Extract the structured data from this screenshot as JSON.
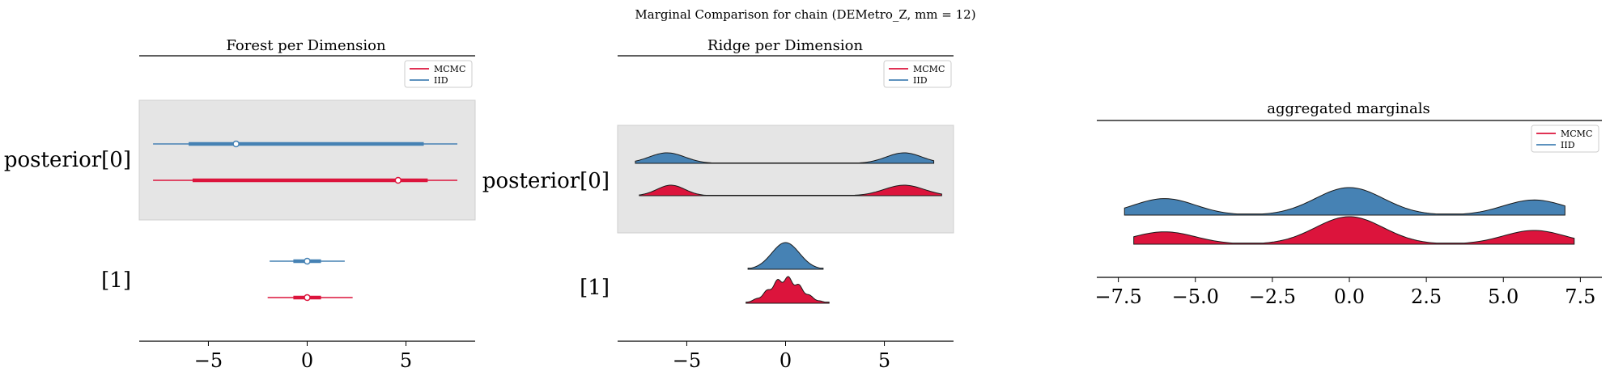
{
  "title": "Marginal Comparison for chain (DEMetro_Z, mm = 12)",
  "colors": {
    "mcmc": "#dc143c",
    "iid": "#4682b4",
    "band": "#e5e5e5"
  },
  "legend": {
    "placement": "upper right",
    "entries": [
      "MCMC",
      "IID"
    ]
  },
  "chart_data": [
    {
      "type": "forest",
      "title": "Forest per Dimension",
      "xlim": [
        -8.5,
        8.5
      ],
      "xticks": [
        -5,
        0,
        5
      ],
      "xtick_labels": [
        "−5",
        "0",
        "5"
      ],
      "rows": [
        {
          "label": "posterior[0]",
          "shaded": true,
          "series": [
            {
              "name": "IID",
              "hdi_thin": [
                -7.8,
                7.6
              ],
              "hdi_thick": [
                -6.0,
                5.9
              ],
              "point": -3.6
            },
            {
              "name": "MCMC",
              "hdi_thin": [
                -7.8,
                7.6
              ],
              "hdi_thick": [
                -5.8,
                6.1
              ],
              "point": 4.6
            }
          ]
        },
        {
          "label": "[1]",
          "shaded": false,
          "series": [
            {
              "name": "IID",
              "hdi_thin": [
                -1.9,
                1.9
              ],
              "hdi_thick": [
                -0.7,
                0.7
              ],
              "point": 0.0
            },
            {
              "name": "MCMC",
              "hdi_thin": [
                -2.0,
                2.3
              ],
              "hdi_thick": [
                -0.7,
                0.7
              ],
              "point": 0.0
            }
          ]
        }
      ]
    },
    {
      "type": "ridge",
      "title": "Ridge per Dimension",
      "xlim": [
        -8.5,
        8.5
      ],
      "xticks": [
        -5,
        0,
        5
      ],
      "xtick_labels": [
        "−5",
        "0",
        "5"
      ],
      "rows": [
        {
          "label": "posterior[0]",
          "shaded": true,
          "series": [
            {
              "name": "IID",
              "range": [
                -7.6,
                7.5
              ],
              "modes": [
                [
                  -6.0,
                  0.9,
                  1.1
                ],
                [
                  6.0,
                  0.9,
                  1.1
                ]
              ]
            },
            {
              "name": "MCMC",
              "range": [
                -7.4,
                7.9
              ],
              "modes": [
                [
                  -5.8,
                  0.7,
                  1.0
                ],
                [
                  6.0,
                  1.0,
                  1.0
                ]
              ]
            }
          ]
        },
        {
          "label": "[1]",
          "shaded": false,
          "series": [
            {
              "name": "IID",
              "range": [
                -1.9,
                1.9
              ],
              "modes": [
                [
                  0.0,
                  0.7,
                  1.0
                ]
              ]
            },
            {
              "name": "MCMC",
              "range": [
                -2.0,
                2.2
              ],
              "modes": [
                [
                  0.0,
                  0.8,
                  1.0
                ]
              ]
            }
          ]
        }
      ]
    },
    {
      "type": "ridge",
      "title": "aggregated marginals",
      "xlim": [
        -8.2,
        8.2
      ],
      "xticks": [
        -7.5,
        -5.0,
        -2.5,
        0.0,
        2.5,
        5.0,
        7.5
      ],
      "xtick_labels": [
        "−7.5",
        "−5.0",
        "−2.5",
        "0.0",
        "2.5",
        "5.0",
        "7.5"
      ],
      "rows": [
        {
          "label": "",
          "shaded": false,
          "series": [
            {
              "name": "IID",
              "range": [
                -7.3,
                7.0
              ],
              "modes": [
                [
                  -6.0,
                  1.0,
                  0.6
                ],
                [
                  0.0,
                  1.1,
                  1.0
                ],
                [
                  6.0,
                  1.0,
                  0.55
                ]
              ]
            },
            {
              "name": "MCMC",
              "range": [
                -7.0,
                7.3
              ],
              "modes": [
                [
                  -6.0,
                  1.0,
                  0.45
                ],
                [
                  0.0,
                  1.1,
                  1.0
                ],
                [
                  6.0,
                  1.0,
                  0.5
                ]
              ]
            }
          ]
        }
      ]
    }
  ]
}
